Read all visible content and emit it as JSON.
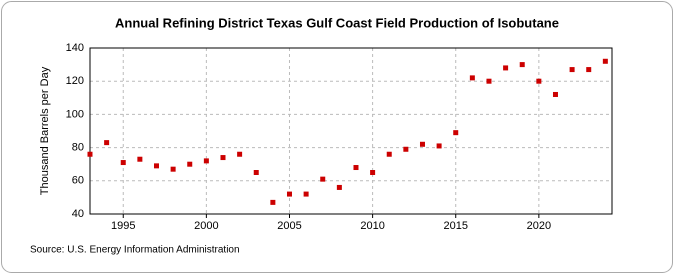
{
  "chart_data": {
    "type": "scatter",
    "title": "Annual Refining District Texas Gulf Coast Field Production of Isobutane",
    "ylabel": "Thousand Barrels per Day",
    "source": "Source: U.S. Energy Information Administration",
    "x": [
      1993,
      1994,
      1995,
      1996,
      1997,
      1998,
      1999,
      2000,
      2001,
      2002,
      2003,
      2004,
      2005,
      2006,
      2007,
      2008,
      2009,
      2010,
      2011,
      2012,
      2013,
      2014,
      2015,
      2016,
      2017,
      2018,
      2019,
      2020,
      2021,
      2022,
      2023,
      2024
    ],
    "values": [
      76,
      83,
      71,
      73,
      69,
      67,
      70,
      72,
      74,
      76,
      65,
      47,
      52,
      52,
      61,
      56,
      68,
      65,
      76,
      79,
      82,
      81,
      89,
      122,
      120,
      128,
      130,
      120,
      112,
      127,
      127,
      132
    ],
    "color": "#cc0000",
    "xlim": [
      1993,
      2024.4
    ],
    "xticks": [
      1995,
      2000,
      2005,
      2010,
      2015,
      2020
    ],
    "ylim": [
      40,
      140
    ],
    "yticks": [
      40,
      60,
      80,
      100,
      120,
      140
    ],
    "grid": true
  }
}
